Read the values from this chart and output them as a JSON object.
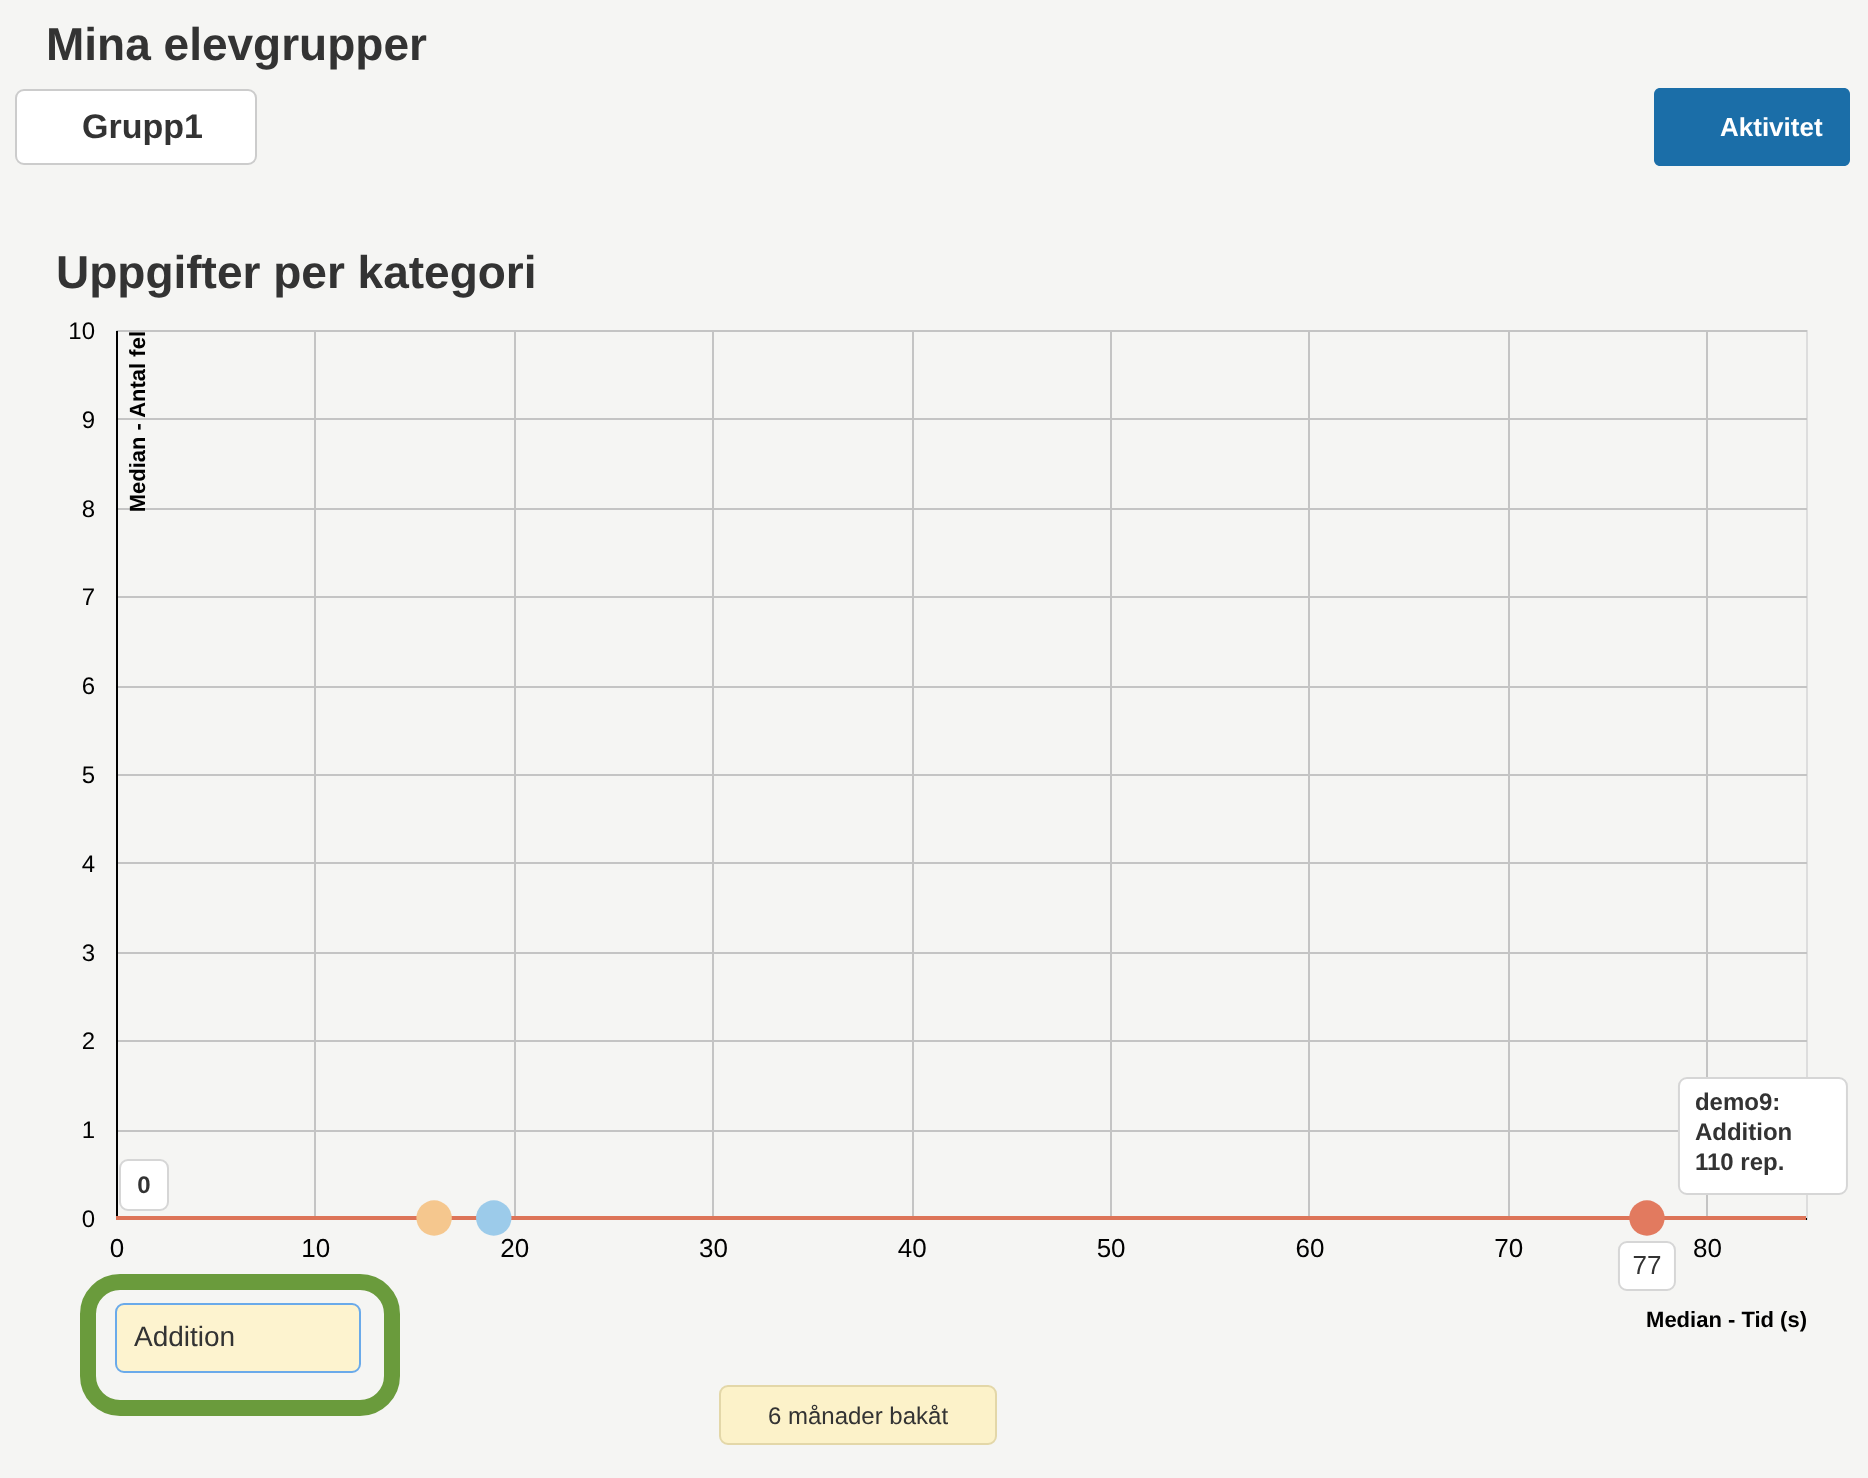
{
  "chart_data": {
    "type": "scatter",
    "title": "Uppgifter per kategori",
    "xlabel": "Median - Tid (s)",
    "ylabel": "Median - Antal fel",
    "x": [
      16,
      19,
      77
    ],
    "values": [
      0,
      0,
      0
    ],
    "colors": [
      "#f5c78e",
      "#9ccbea",
      "#e27a5f"
    ],
    "marker": "circle",
    "xlim": [
      0,
      85
    ],
    "ylim": [
      0,
      10
    ],
    "xticks": [
      0,
      10,
      20,
      30,
      40,
      50,
      60,
      70,
      80
    ],
    "yticks": [
      0,
      1,
      2,
      3,
      4,
      5,
      6,
      7,
      8,
      9,
      10
    ],
    "grid": true,
    "ref_lines": [
      {
        "axis": "y",
        "value": 0,
        "color": "#dd7458"
      }
    ],
    "annotations": [
      "Mina elevgrupper",
      "Grupp1",
      "Aktivitet",
      "Addition",
      "6 månader bakåt",
      "0",
      {
        "text": "77",
        "x": 77,
        "y": 0
      },
      {
        "text": "demo9:\nAddition\n110 rep.",
        "x": 77,
        "y": 0
      }
    ]
  }
}
